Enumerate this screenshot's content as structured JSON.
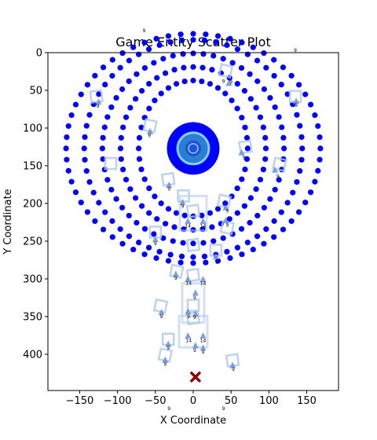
{
  "chart_data": {
    "type": "scatter",
    "title": "Game Entity Scatter Plot",
    "xlabel": "X Coordinate",
    "ylabel": "Y Coordinate",
    "xlim": [
      -192,
      192
    ],
    "ylim": [
      448,
      0
    ],
    "y_inverted": true,
    "x_ticks": [
      -150,
      -100,
      -50,
      0,
      50,
      100,
      150
    ],
    "y_ticks": [
      0,
      50,
      100,
      150,
      200,
      250,
      300,
      350,
      400
    ],
    "colors": {
      "ring_points": "#0000ff",
      "core_outer": "#1f50d6",
      "core_inner": "#2a7fd0",
      "core_ring": "#87cefa",
      "outline": "#aec7e8",
      "triangle": "#6a8fd4",
      "target": "#8b0000"
    },
    "center": {
      "x": 0,
      "y": 127
    },
    "rings": [
      {
        "name": "inner",
        "radius_x": 72,
        "radius_y": 90,
        "count": 40
      },
      {
        "name": "middle",
        "radius_x": 96,
        "radius_y": 108,
        "count": 48
      },
      {
        "name": "outer_a",
        "radius_x": 120,
        "radius_y": 126,
        "count": 56
      },
      {
        "name": "outer_b",
        "radius_x": 144,
        "radius_y": 144,
        "count": 60
      },
      {
        "name": "outer_c",
        "radius_x": 168,
        "radius_y": 152,
        "count": 64
      }
    ],
    "target": {
      "x": 3,
      "y": 430
    },
    "squares": [
      {
        "x": 43,
        "y": 24
      },
      {
        "x": -128,
        "y": 58
      },
      {
        "x": 135,
        "y": 58
      },
      {
        "x": -57,
        "y": 97
      },
      {
        "x": 69,
        "y": 125
      },
      {
        "x": -109,
        "y": 147
      },
      {
        "x": 114,
        "y": 148
      },
      {
        "x": -33,
        "y": 168
      },
      {
        "x": -13,
        "y": 190
      },
      {
        "x": 41,
        "y": 197
      },
      {
        "x": 0,
        "y": 210
      },
      {
        "x": -50,
        "y": 238
      },
      {
        "x": 45,
        "y": 232
      },
      {
        "x": 0,
        "y": 255
      },
      {
        "x": 30,
        "y": 262
      },
      {
        "x": -22,
        "y": 290
      },
      {
        "x": 0,
        "y": 295
      },
      {
        "x": 0,
        "y": 335
      },
      {
        "x": -43,
        "y": 336
      },
      {
        "x": 0,
        "y": 352
      },
      {
        "x": -33,
        "y": 380
      },
      {
        "x": -37,
        "y": 401
      },
      {
        "x": 52,
        "y": 408
      }
    ],
    "triangles": [
      {
        "x": 47,
        "y": 40
      },
      {
        "x": -125,
        "y": 65
      },
      {
        "x": 136,
        "y": 64
      },
      {
        "x": -57,
        "y": 104
      },
      {
        "x": 64,
        "y": 132
      },
      {
        "x": 108,
        "y": 155
      },
      {
        "x": -32,
        "y": 175
      },
      {
        "x": -14,
        "y": 198
      },
      {
        "x": 43,
        "y": 205
      },
      {
        "x": -7,
        "y": 223
      },
      {
        "x": 13,
        "y": 223
      },
      {
        "x": 43,
        "y": 222
      },
      {
        "x": -50,
        "y": 247
      },
      {
        "x": 30,
        "y": 270
      },
      {
        "x": -23,
        "y": 293
      },
      {
        "x": -7,
        "y": 300
      },
      {
        "x": 13,
        "y": 300
      },
      {
        "x": 3,
        "y": 318
      },
      {
        "x": -42,
        "y": 344
      },
      {
        "x": -7,
        "y": 343
      },
      {
        "x": 3,
        "y": 346
      },
      {
        "x": -7,
        "y": 375
      },
      {
        "x": 13,
        "y": 375
      },
      {
        "x": -33,
        "y": 386
      },
      {
        "x": 3,
        "y": 388
      },
      {
        "x": 13,
        "y": 391
      },
      {
        "x": -37,
        "y": 407
      },
      {
        "x": 52,
        "y": 414
      }
    ],
    "annotations": [
      {
        "x": -65,
        "y": -27,
        "text": "9"
      },
      {
        "x": 40,
        "y": 40,
        "text": "9"
      },
      {
        "x": 50,
        "y": 41,
        "text": "9"
      },
      {
        "x": 135,
        "y": -1,
        "text": "9"
      },
      {
        "x": -126,
        "y": 73,
        "text": "9"
      },
      {
        "x": 136,
        "y": 72,
        "text": "9"
      },
      {
        "x": -58,
        "y": 112,
        "text": "9"
      },
      {
        "x": 67,
        "y": 141,
        "text": "9"
      },
      {
        "x": 112,
        "y": 166,
        "text": "9"
      },
      {
        "x": -32,
        "y": 183,
        "text": "9"
      },
      {
        "x": -14,
        "y": 206,
        "text": "9"
      },
      {
        "x": 45,
        "y": 212,
        "text": "9"
      },
      {
        "x": -7,
        "y": 232,
        "text": "14"
      },
      {
        "x": 13,
        "y": 232,
        "text": "14"
      },
      {
        "x": 45,
        "y": 231,
        "text": "9"
      },
      {
        "x": -50,
        "y": 255,
        "text": "9"
      },
      {
        "x": 31,
        "y": 280,
        "text": "9"
      },
      {
        "x": -23,
        "y": 301,
        "text": "9"
      },
      {
        "x": -6,
        "y": 308,
        "text": "14"
      },
      {
        "x": 13,
        "y": 308,
        "text": "14"
      },
      {
        "x": 2,
        "y": 327,
        "text": "9"
      },
      {
        "x": -42,
        "y": 352,
        "text": "9"
      },
      {
        "x": -6,
        "y": 352,
        "text": "9"
      },
      {
        "x": 2,
        "y": 353,
        "text": "9"
      },
      {
        "x": -6,
        "y": 384,
        "text": "14"
      },
      {
        "x": 13,
        "y": 384,
        "text": "14"
      },
      {
        "x": -33,
        "y": 394,
        "text": "9"
      },
      {
        "x": 2,
        "y": 397,
        "text": "9"
      },
      {
        "x": 13,
        "y": 399,
        "text": "9"
      },
      {
        "x": -37,
        "y": 415,
        "text": "9"
      },
      {
        "x": 53,
        "y": 422,
        "text": "9"
      },
      {
        "x": -32,
        "y": 474,
        "text": "9"
      },
      {
        "x": 40,
        "y": 474,
        "text": "9"
      }
    ]
  }
}
